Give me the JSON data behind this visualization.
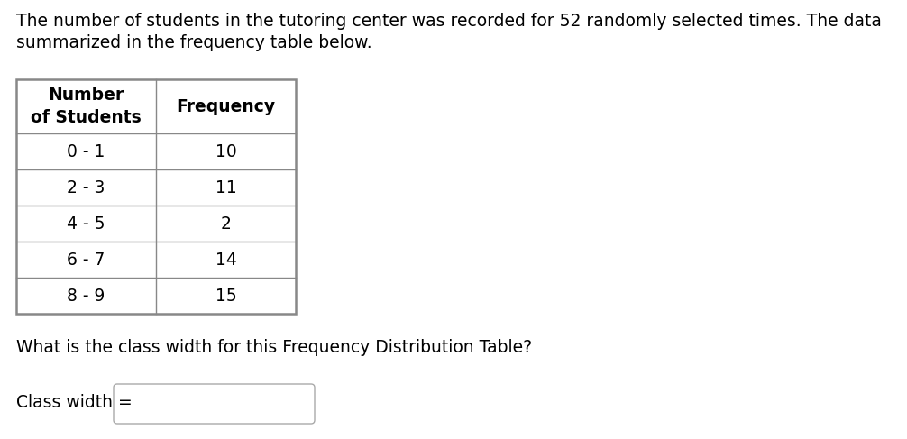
{
  "title_line1": "The number of students in the tutoring center was recorded for 52 randomly selected times. The data",
  "title_line2": "summarized in the frequency table below.",
  "col1_header": "Number\nof Students",
  "col2_header": "Frequency",
  "rows": [
    [
      "0 - 1",
      "10"
    ],
    [
      "2 - 3",
      "11"
    ],
    [
      "4 - 5",
      "2"
    ],
    [
      "6 - 7",
      "14"
    ],
    [
      "8 - 9",
      "15"
    ]
  ],
  "question": "What is the class width for this Frequency Distribution Table?",
  "answer_label": "Class width =",
  "bg_color": "#ffffff",
  "table_border_color": "#888888",
  "text_color": "#000000",
  "font_size_title": 13.5,
  "font_size_table": 13.5,
  "font_size_question": 13.5,
  "font_size_answer": 13.5,
  "fig_width": 10.06,
  "fig_height": 4.87,
  "dpi": 100
}
